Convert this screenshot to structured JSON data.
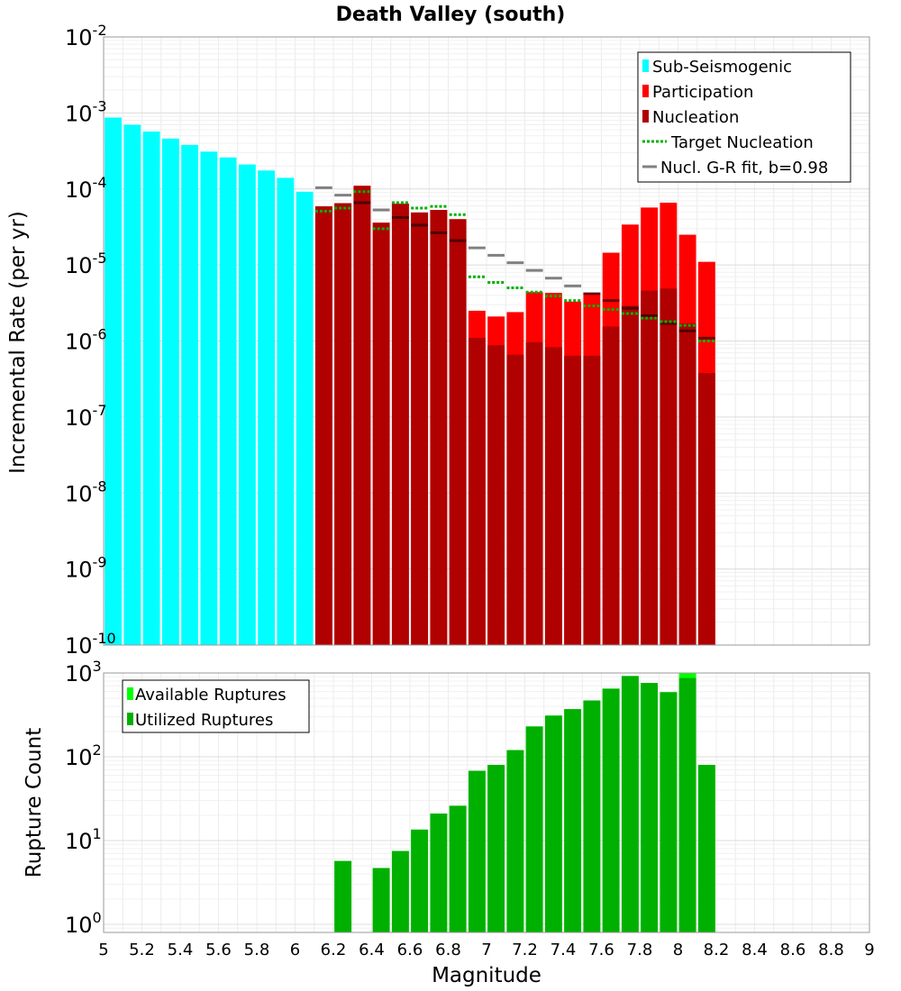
{
  "chart_data": [
    {
      "type": "bar",
      "title": "Death Valley (south)",
      "xlabel": "Magnitude",
      "ylabel": "Incremental Rate (per yr)",
      "yscale": "log",
      "ylim": [
        1e-10,
        0.01
      ],
      "xlim": [
        5,
        9
      ],
      "ytick_exponents": [
        "-10",
        "-9",
        "-8",
        "-7",
        "-6",
        "-5",
        "-4",
        "-3",
        "-2"
      ],
      "bar_width": 0.1,
      "legend": {
        "position": "top-right",
        "entries": [
          {
            "label": "Sub-Seismogenic",
            "color": "#00ffff",
            "style": "bar"
          },
          {
            "label": "Participation",
            "color": "#ff0000",
            "style": "bar"
          },
          {
            "label": "Nucleation",
            "color": "#b00000",
            "style": "bar"
          },
          {
            "label": "Target Nucleation",
            "color": "#00b000",
            "style": "dotted"
          },
          {
            "label": "Nucl. G-R fit, b=0.98",
            "color": "#808080",
            "style": "solid"
          }
        ]
      },
      "series": [
        {
          "name": "Sub-Seismogenic",
          "x": [
            5.05,
            5.15,
            5.25,
            5.35,
            5.45,
            5.55,
            5.65,
            5.75,
            5.85,
            5.95,
            6.05
          ],
          "values": [
            0.00087,
            0.0007,
            0.00057,
            0.00046,
            0.00038,
            0.00031,
            0.00026,
            0.00021,
            0.000175,
            0.00014,
            9.2e-05
          ]
        },
        {
          "name": "Participation",
          "x": [
            6.15,
            6.25,
            6.35,
            6.45,
            6.55,
            6.65,
            6.75,
            6.85,
            6.95,
            7.05,
            7.15,
            7.25,
            7.35,
            7.45,
            7.55,
            7.65,
            7.75,
            7.85,
            7.95,
            8.05,
            8.15
          ],
          "values": [
            5.9e-05,
            6.5e-05,
            0.00011,
            3.6e-05,
            6.4e-05,
            4.9e-05,
            5.3e-05,
            4e-05,
            2.5e-06,
            2.1e-06,
            2.4e-06,
            4.4e-06,
            4.3e-06,
            3.3e-06,
            4.3e-06,
            1.45e-05,
            3.4e-05,
            5.7e-05,
            6.6e-05,
            2.5e-05,
            1.1e-05
          ]
        },
        {
          "name": "Nucleation",
          "x": [
            6.15,
            6.25,
            6.35,
            6.45,
            6.55,
            6.65,
            6.75,
            6.85,
            6.95,
            7.05,
            7.15,
            7.25,
            7.35,
            7.45,
            7.55,
            7.65,
            7.75,
            7.85,
            7.95,
            8.05,
            8.15
          ],
          "values": [
            5.9e-05,
            6.5e-05,
            0.00011,
            3.6e-05,
            6.4e-05,
            4.9e-05,
            5.3e-05,
            4e-05,
            1.1e-06,
            8.8e-07,
            6.6e-07,
            9.6e-07,
            8.3e-07,
            6.4e-07,
            6.4e-07,
            1.55e-06,
            2.9e-06,
            4.6e-06,
            4.9e-06,
            1.7e-06,
            3.8e-07
          ]
        },
        {
          "name": "Target Nucleation",
          "x": [
            6.15,
            6.25,
            6.35,
            6.45,
            6.55,
            6.65,
            6.75,
            6.85,
            6.95,
            7.05,
            7.15,
            7.25,
            7.35,
            7.45,
            7.55,
            7.65,
            7.75,
            7.85,
            7.95,
            8.05,
            8.15
          ],
          "values": [
            5.1e-05,
            5.6e-05,
            9.2e-05,
            3e-05,
            6.6e-05,
            5.6e-05,
            5.9e-05,
            4.6e-05,
            7e-06,
            5.9e-06,
            5e-06,
            4.4e-06,
            3.9e-06,
            3.4e-06,
            2.9e-06,
            2.6e-06,
            2.3e-06,
            2e-06,
            1.8e-06,
            1.6e-06,
            1e-06
          ]
        },
        {
          "name": "Nucl. G-R fit, b=0.98",
          "x": [
            6.15,
            6.25,
            6.35,
            6.45,
            6.55,
            6.65,
            6.75,
            6.85,
            6.95,
            7.05,
            7.15,
            7.25,
            7.35,
            7.45,
            7.55,
            7.65,
            7.75,
            7.85,
            7.95,
            8.05,
            8.15
          ],
          "values": [
            0.000104,
            8.3e-05,
            6.6e-05,
            5.3e-05,
            4.2e-05,
            3.35e-05,
            2.65e-05,
            2.1e-05,
            1.68e-05,
            1.34e-05,
            1.07e-05,
            8.5e-06,
            6.7e-06,
            5.3e-06,
            4.2e-06,
            3.4e-06,
            2.7e-06,
            2.15e-06,
            1.7e-06,
            1.36e-06,
            1.09e-06
          ]
        }
      ]
    },
    {
      "type": "bar",
      "title": "",
      "xlabel": "Magnitude",
      "ylabel": "Rupture Count",
      "yscale": "log",
      "ylim": [
        0.8,
        1000
      ],
      "xlim": [
        5,
        9
      ],
      "ytick_exponents": [
        "0",
        "1",
        "2",
        "3"
      ],
      "xticks": [
        "5",
        "5.2",
        "5.4",
        "5.6",
        "5.8",
        "6",
        "6.2",
        "6.4",
        "6.6",
        "6.8",
        "7",
        "7.2",
        "7.4",
        "7.6",
        "7.8",
        "8",
        "8.2",
        "8.4",
        "8.6",
        "8.8",
        "9"
      ],
      "bar_width": 0.1,
      "legend": {
        "position": "top-left",
        "entries": [
          {
            "label": "Available Ruptures",
            "color": "#00ff00",
            "style": "bar"
          },
          {
            "label": "Utilized Ruptures",
            "color": "#00b000",
            "style": "bar"
          }
        ]
      },
      "series": [
        {
          "name": "Available Ruptures",
          "x": [
            6.25,
            6.45,
            6.55,
            6.65,
            6.75,
            6.85,
            6.95,
            7.05,
            7.15,
            7.25,
            7.35,
            7.45,
            7.55,
            7.65,
            7.75,
            7.85,
            7.95,
            8.05,
            8.15
          ],
          "values": [
            5.7,
            4.7,
            7.5,
            13.5,
            21,
            26,
            68,
            80,
            120,
            230,
            310,
            370,
            470,
            650,
            920,
            760,
            590,
            990,
            80
          ]
        },
        {
          "name": "Utilized Ruptures",
          "x": [
            6.25,
            6.45,
            6.55,
            6.65,
            6.75,
            6.85,
            6.95,
            7.05,
            7.15,
            7.25,
            7.35,
            7.45,
            7.55,
            7.65,
            7.75,
            7.85,
            7.95,
            8.05,
            8.15
          ],
          "values": [
            5.7,
            4.7,
            7.5,
            13.5,
            21,
            26,
            68,
            80,
            120,
            230,
            310,
            370,
            470,
            650,
            920,
            760,
            590,
            870,
            80
          ]
        }
      ]
    }
  ]
}
